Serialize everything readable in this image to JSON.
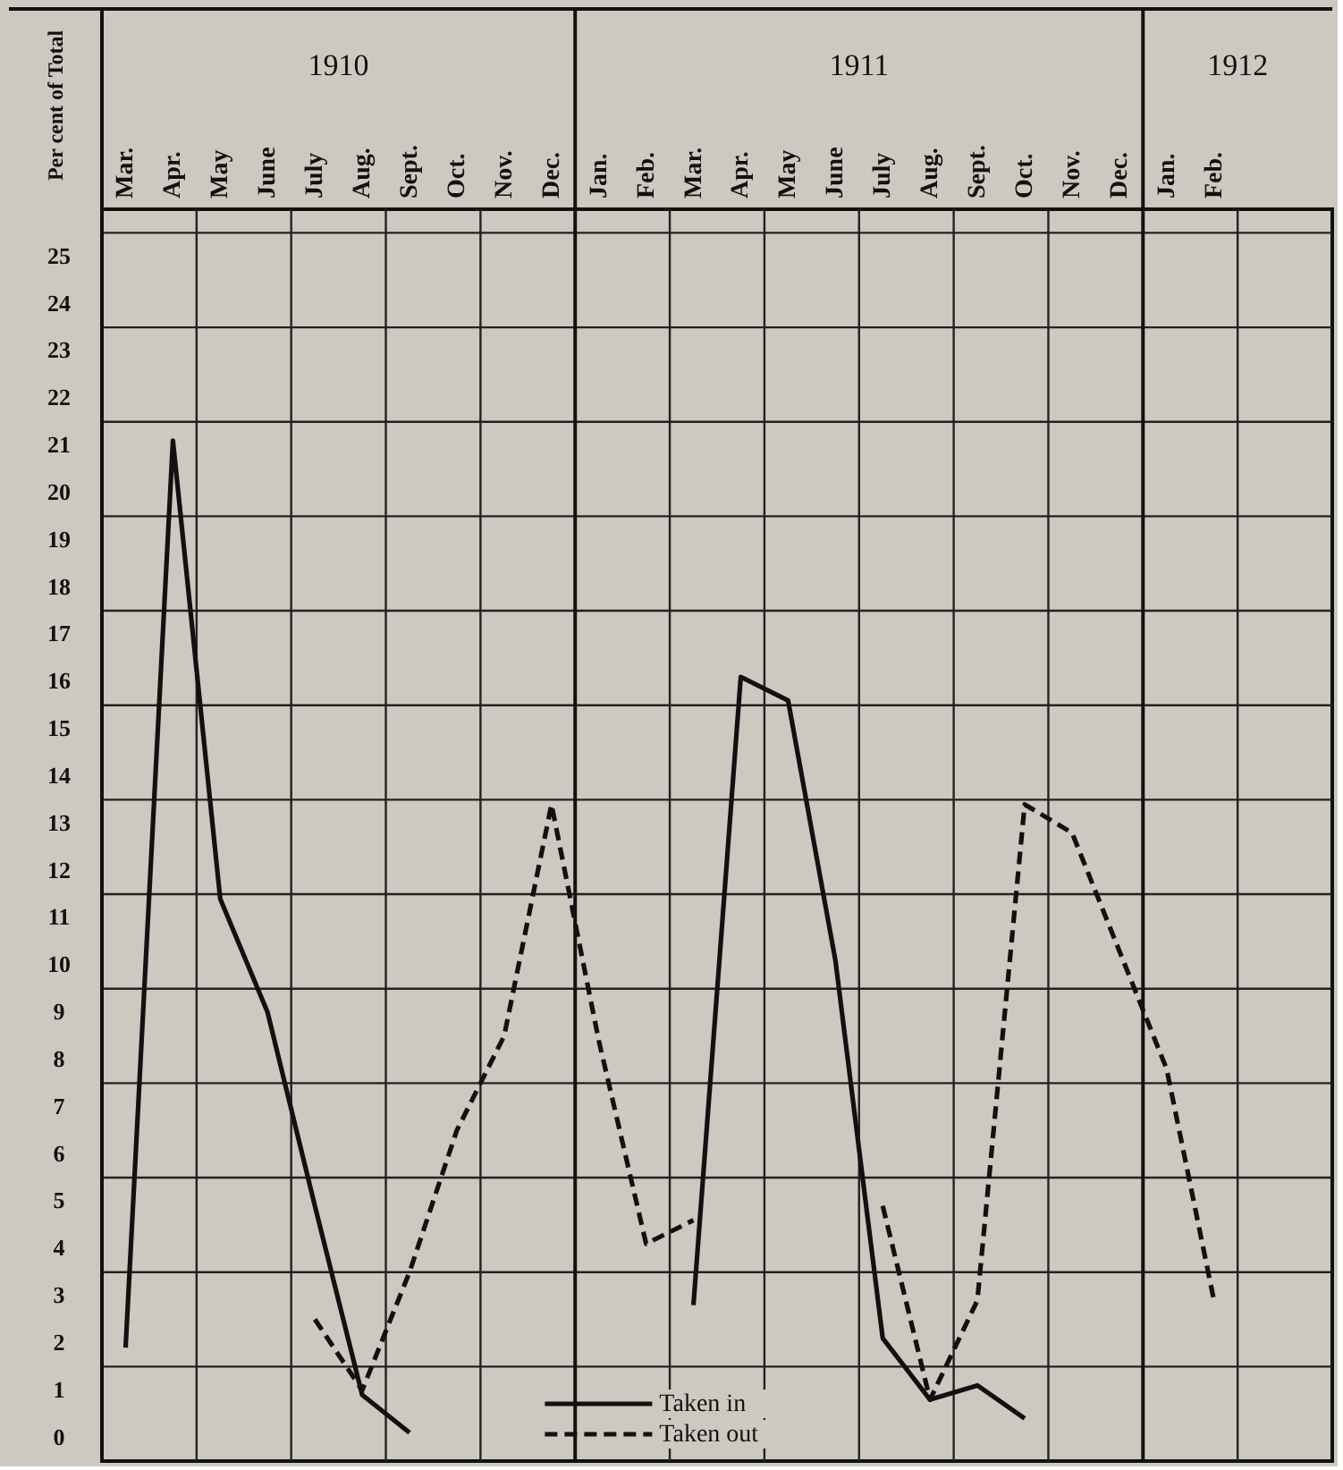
{
  "chart_data": {
    "type": "line",
    "ylabel": "Per cent of Total",
    "categories": [
      "Mar.",
      "Apr.",
      "May",
      "June",
      "July",
      "Aug.",
      "Sept.",
      "Oct.",
      "Nov.",
      "Dec.",
      "Jan.",
      "Feb.",
      "Mar.",
      "Apr.",
      "May",
      "June",
      "July",
      "Aug.",
      "Sept.",
      "Oct.",
      "Nov.",
      "Dec.",
      "Jan.",
      "Feb.",
      null,
      null
    ],
    "annotations": [
      "1910",
      "1911",
      "1912"
    ],
    "series": [
      {
        "name": "Taken in",
        "color": "#111111",
        "line_style": "solid",
        "values": [
          1.9,
          21.1,
          11.4,
          9.0,
          4.9,
          0.9,
          0.1,
          null,
          null,
          null,
          null,
          null,
          2.8,
          16.1,
          15.6,
          10.1,
          2.1,
          0.8,
          1.1,
          0.4,
          null,
          null,
          null,
          null,
          null,
          null
        ]
      },
      {
        "name": "Taken out",
        "color": "#111111",
        "line_style": "dashed",
        "values": [
          null,
          null,
          null,
          null,
          2.5,
          1.0,
          3.5,
          6.5,
          8.5,
          13.4,
          8.4,
          4.1,
          4.6,
          null,
          null,
          null,
          4.9,
          0.8,
          2.9,
          13.4,
          12.8,
          10.3,
          7.8,
          2.9,
          null,
          null
        ]
      }
    ],
    "ylim": [
      -0.5,
      26
    ],
    "yticks": [
      0,
      1,
      2,
      3,
      4,
      5,
      6,
      7,
      8,
      9,
      10,
      11,
      12,
      13,
      14,
      15,
      16,
      17,
      18,
      19,
      20,
      21,
      22,
      23,
      24,
      25,
      {
        "value": 1.5,
        "label": null
      },
      {
        "value": 3.5,
        "label": null
      },
      {
        "value": 5.5,
        "label": null
      },
      {
        "value": 7.5,
        "label": null
      },
      {
        "value": 9.5,
        "label": null
      },
      {
        "value": 11.5,
        "label": null
      },
      {
        "value": 13.5,
        "label": null
      },
      {
        "value": 15.5,
        "label": null
      },
      {
        "value": 17.5,
        "label": null
      },
      {
        "value": 19.5,
        "label": null
      },
      {
        "value": 21.5,
        "label": null
      },
      {
        "value": 23.5,
        "label": null
      },
      {
        "value": 25.5,
        "label": null
      }
    ],
    "grid": true,
    "legend": "bottom"
  }
}
